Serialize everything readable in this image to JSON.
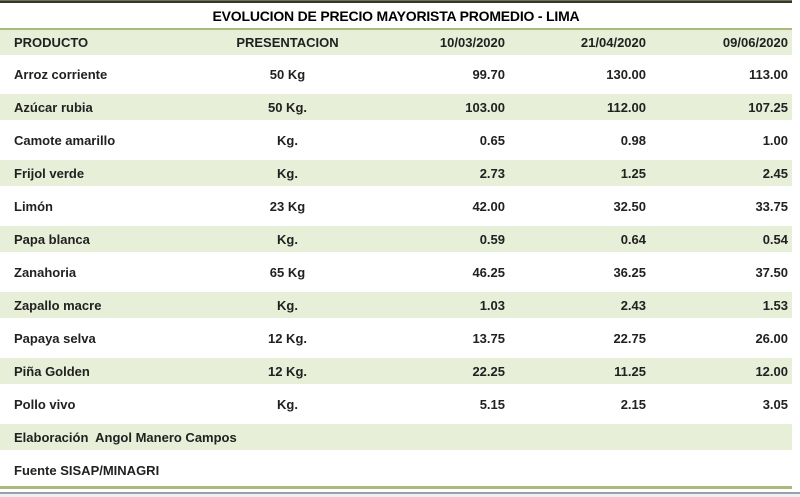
{
  "title": "EVOLUCION DE PRECIO MAYORISTA PROMEDIO - LIMA",
  "table": {
    "columns": [
      "PRODUCTO",
      "PRESENTACION",
      "10/03/2020",
      "21/04/2020",
      "09/06/2020"
    ],
    "rows": [
      [
        "Arroz corriente",
        "50 Kg",
        "99.70",
        "130.00",
        "113.00"
      ],
      [
        "Azúcar rubia",
        "50 Kg.",
        "103.00",
        "112.00",
        "107.25"
      ],
      [
        "Camote amarillo",
        "Kg.",
        "0.65",
        "0.98",
        "1.00"
      ],
      [
        "Frijol verde",
        "Kg.",
        "2.73",
        "1.25",
        "2.45"
      ],
      [
        "Limón",
        "23 Kg",
        "42.00",
        "32.50",
        "33.75"
      ],
      [
        "Papa blanca",
        "Kg.",
        "0.59",
        "0.64",
        "0.54"
      ],
      [
        "Zanahoria",
        "65 Kg",
        "46.25",
        "36.25",
        "37.50"
      ],
      [
        "Zapallo macre",
        "Kg.",
        "1.03",
        "2.43",
        "1.53"
      ],
      [
        "Papaya selva",
        "12 Kg.",
        "13.75",
        "22.75",
        "26.00"
      ],
      [
        "Piña Golden",
        "12 Kg.",
        "22.25",
        "11.25",
        "12.00"
      ],
      [
        "Pollo vivo",
        "Kg.",
        "5.15",
        "2.15",
        "3.05"
      ]
    ],
    "footer_rows": [
      "Elaboración  Angol Manero Campos",
      "Fuente SISAP/MINAGRI"
    ]
  },
  "colors": {
    "band_green": "#e7efd8",
    "olive_rule": "#a9ba7a",
    "top_bar": "#33362e",
    "text": "#212121",
    "gray_rule": "#9aa0ad"
  },
  "chart_data": {
    "type": "table",
    "title": "EVOLUCION DE PRECIO MAYORISTA PROMEDIO - LIMA",
    "columns": [
      "PRODUCTO",
      "PRESENTACION",
      "10/03/2020",
      "21/04/2020",
      "09/06/2020"
    ],
    "rows": [
      {
        "producto": "Arroz corriente",
        "presentacion": "50 Kg",
        "precio_10_03_2020": 99.7,
        "precio_21_04_2020": 130.0,
        "precio_09_06_2020": 113.0
      },
      {
        "producto": "Azúcar rubia",
        "presentacion": "50 Kg.",
        "precio_10_03_2020": 103.0,
        "precio_21_04_2020": 112.0,
        "precio_09_06_2020": 107.25
      },
      {
        "producto": "Camote amarillo",
        "presentacion": "Kg.",
        "precio_10_03_2020": 0.65,
        "precio_21_04_2020": 0.98,
        "precio_09_06_2020": 1.0
      },
      {
        "producto": "Frijol verde",
        "presentacion": "Kg.",
        "precio_10_03_2020": 2.73,
        "precio_21_04_2020": 1.25,
        "precio_09_06_2020": 2.45
      },
      {
        "producto": "Limón",
        "presentacion": "23 Kg",
        "precio_10_03_2020": 42.0,
        "precio_21_04_2020": 32.5,
        "precio_09_06_2020": 33.75
      },
      {
        "producto": "Papa blanca",
        "presentacion": "Kg.",
        "precio_10_03_2020": 0.59,
        "precio_21_04_2020": 0.64,
        "precio_09_06_2020": 0.54
      },
      {
        "producto": "Zanahoria",
        "presentacion": "65 Kg",
        "precio_10_03_2020": 46.25,
        "precio_21_04_2020": 36.25,
        "precio_09_06_2020": 37.5
      },
      {
        "producto": "Zapallo macre",
        "presentacion": "Kg.",
        "precio_10_03_2020": 1.03,
        "precio_21_04_2020": 2.43,
        "precio_09_06_2020": 1.53
      },
      {
        "producto": "Papaya selva",
        "presentacion": "12 Kg.",
        "precio_10_03_2020": 13.75,
        "precio_21_04_2020": 22.75,
        "precio_09_06_2020": 26.0
      },
      {
        "producto": "Piña Golden",
        "presentacion": "12 Kg.",
        "precio_10_03_2020": 22.25,
        "precio_21_04_2020": 11.25,
        "precio_09_06_2020": 12.0
      },
      {
        "producto": "Pollo vivo",
        "presentacion": "Kg.",
        "precio_10_03_2020": 5.15,
        "precio_21_04_2020": 2.15,
        "precio_09_06_2020": 3.05
      }
    ],
    "footer": [
      "Elaboración  Angol Manero Campos",
      "Fuente SISAP/MINAGRI"
    ]
  }
}
